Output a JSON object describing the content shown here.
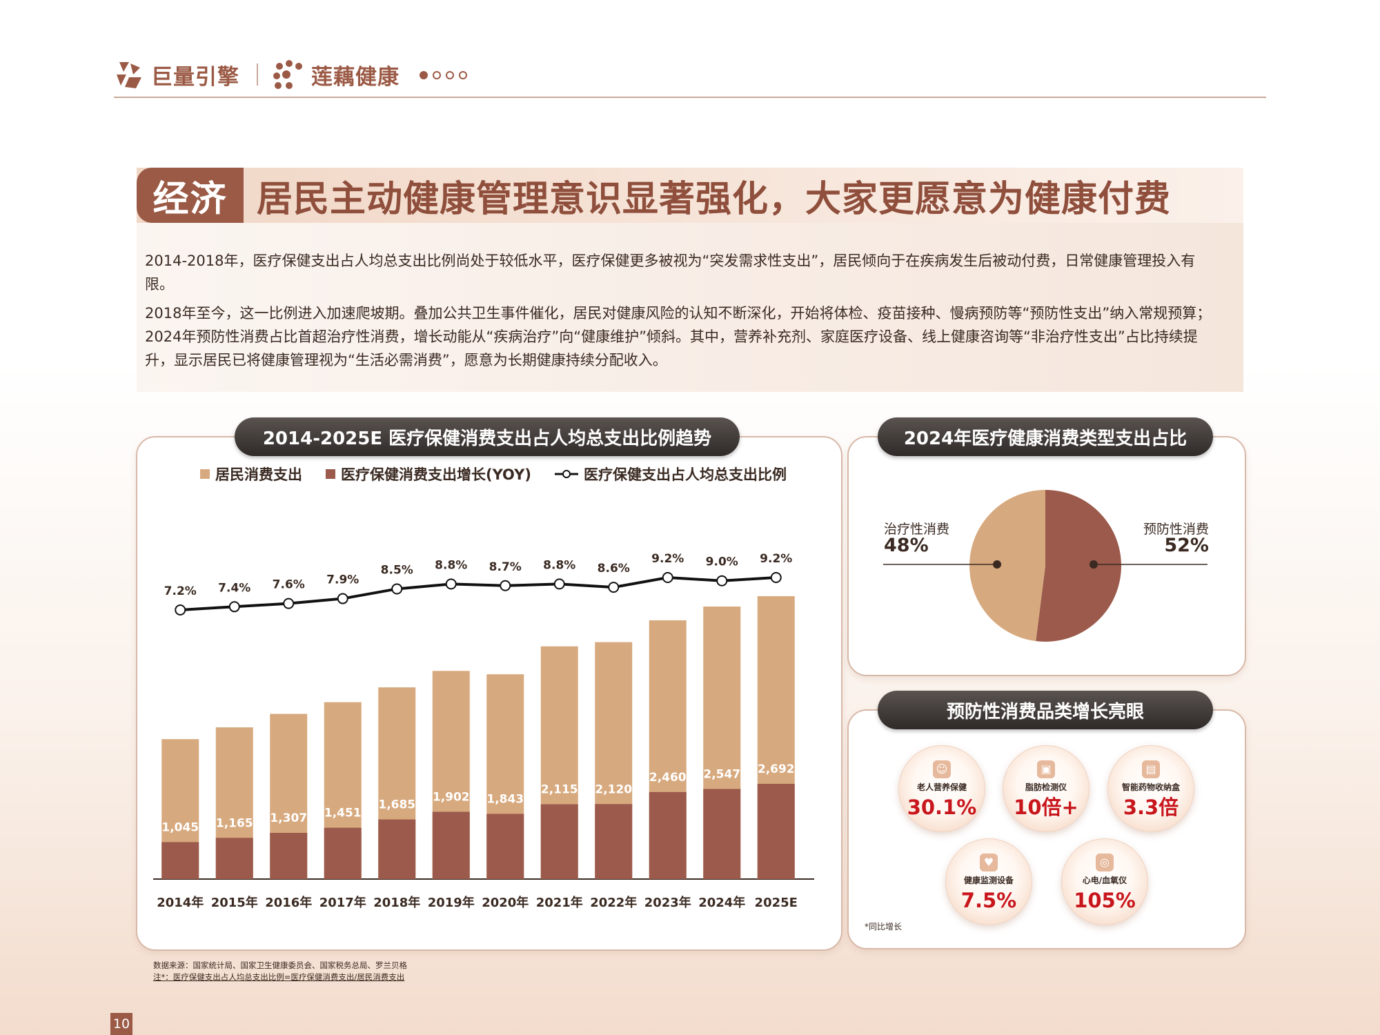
{
  "header": {
    "brand1": "巨量引擎",
    "brand2": "莲藕健康",
    "page_dots": 4,
    "active_dot": 0,
    "accent_color": "#9b5a45"
  },
  "title": {
    "tag": "经济",
    "text": "居民主动健康管理意识显著强化，大家更愿意为健康付费"
  },
  "paragraphs": [
    "2014-2018年，医疗保健支出占人均总支出比例尚处于较低水平，医疗保健更多被视为“突发需求性支出”，居民倾向于在疾病发生后被动付费，日常健康管理投入有限。",
    "2018年至今，这一比例进入加速爬坡期。叠加公共卫生事件催化，居民对健康风险的认知不断深化，开始将体检、疫苗接种、慢病预防等“预防性支出”纳入常规预算；2024年预防性消费占比首超治疗性消费，增长动能从“疾病治疗”向“健康维护”倾斜。其中，营养补充剂、家庭医疗设备、线上健康咨询等“非治疗性支出”占比持续提升，显示居民已将健康管理视为“生活必需消费”，愿意为长期健康持续分配收入。"
  ],
  "main_chart": {
    "title": "2014-2025E 医疗保健消费支出占人均总支出比例趋势",
    "legend": [
      "居民消费支出",
      "医疗保健消费支出增长(YOY)",
      "医疗保健支出占人均总支出比例"
    ]
  },
  "pie_panel": {
    "title": "2024年医疗健康消费类型支出占比",
    "left_label": "治疗性消费",
    "left_value": "48%",
    "right_label": "预防性消费",
    "right_value": "52%"
  },
  "preventive": {
    "title": "预防性消费品类增长亮眼",
    "items": [
      {
        "name": "老人营养保健",
        "value": "30.1%",
        "icon": "elder-icon"
      },
      {
        "name": "脂肪检测仪",
        "value": "10倍+",
        "icon": "scale-icon"
      },
      {
        "name": "智能药物收纳盒",
        "value": "3.3倍",
        "icon": "pillbox-icon"
      },
      {
        "name": "健康监测设备",
        "value": "7.5%",
        "icon": "heartbeat-icon"
      },
      {
        "name": "心电/血氧仪",
        "value": "105%",
        "icon": "oximeter-icon"
      }
    ],
    "note": "*同比增长"
  },
  "source": {
    "line1": "数据来源：国家统计局、国家卫生健康委员会、国家税务总局、罗兰贝格",
    "line2": "注*：医疗保健支出占人均总支出比例=医疗保健消费支出/居民消费支出"
  },
  "page_number": "10",
  "chart_data": [
    {
      "type": "bar",
      "title": "2014-2025E 医疗保健消费支出占人均总支出比例趋势",
      "categories": [
        "2014年",
        "2015年",
        "2016年",
        "2017年",
        "2018年",
        "2019年",
        "2020年",
        "2021年",
        "2022年",
        "2023年",
        "2024年",
        "2025E"
      ],
      "series": [
        {
          "name": "居民消费支出",
          "values": [
            14491,
            15712,
            17111,
            18322,
            19853,
            21559,
            21210,
            24100,
            24538,
            26796,
            28227,
            29300
          ],
          "color": "#d7a97e"
        },
        {
          "name": "医疗保健消费支出增长(YOY)",
          "values": [
            1045,
            1165,
            1307,
            1451,
            1685,
            1902,
            1843,
            2115,
            2120,
            2460,
            2547,
            2692
          ],
          "color": "#9b5a4b"
        },
        {
          "name": "医疗保健支出占人均总支出比例",
          "type": "line",
          "values": [
            7.2,
            7.4,
            7.6,
            7.9,
            8.5,
            8.8,
            8.7,
            8.8,
            8.6,
            9.2,
            9.0,
            9.2
          ],
          "labels": [
            "7.2%",
            "7.4%",
            "7.6%",
            "7.9%",
            "8.5%",
            "8.8%",
            "8.7%",
            "8.8%",
            "8.6%",
            "9.2%",
            "9.0%",
            "9.2%"
          ],
          "color": "#111111"
        }
      ],
      "bar_labels": [
        "1,045",
        "1,165",
        "1,307",
        "1,451",
        "1,685",
        "1,902",
        "1,843",
        "2,115",
        "2,120",
        "2,460",
        "2,547",
        "2,692"
      ],
      "legend_position": "top"
    },
    {
      "type": "pie",
      "title": "2024年医疗健康消费类型支出占比",
      "labels": [
        "治疗性消费",
        "预防性消费"
      ],
      "values": [
        48,
        52
      ],
      "colors": [
        "#d7a97e",
        "#9b5a4b"
      ]
    }
  ]
}
